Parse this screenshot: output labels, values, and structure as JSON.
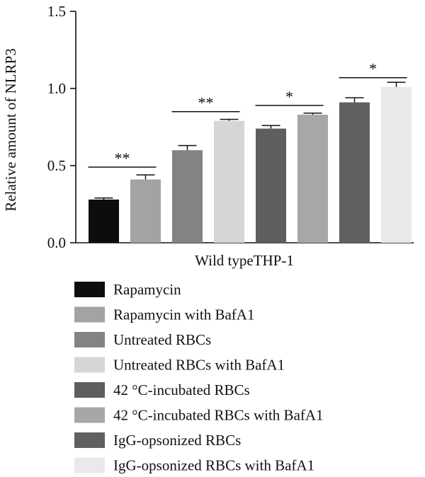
{
  "chart_data": {
    "type": "bar",
    "xlabel": "Wild typeTHP-1",
    "ylabel": "Relative amount of NLRP3",
    "ylim": [
      0,
      1.5
    ],
    "yticks": [
      "0.0",
      "0.5",
      "1.0",
      "1.5"
    ],
    "ytick_values": [
      0,
      0.5,
      1.0,
      1.5
    ],
    "grid": false,
    "legend_position": "bottom",
    "series": [
      {
        "name": "Rapamycin",
        "value": 0.28,
        "error": 0.01,
        "color": "#0d0d0d"
      },
      {
        "name": "Rapamycin with BafA1",
        "value": 0.41,
        "error": 0.03,
        "color": "#a3a3a6"
      },
      {
        "name": "Untreated RBCs",
        "value": 0.6,
        "error": 0.03,
        "color": "#838385"
      },
      {
        "name": "Untreated RBCs with BafA1",
        "value": 0.79,
        "error": 0.01,
        "color": "#d6d6d6"
      },
      {
        "name": "42 °C-incubated RBCs",
        "value": 0.74,
        "error": 0.02,
        "color": "#5e5e60"
      },
      {
        "name": "42 °C-incubated RBCs with BafA1",
        "value": 0.83,
        "error": 0.01,
        "color": "#a7a7aa"
      },
      {
        "name": "IgG-opsonized RBCs",
        "value": 0.91,
        "error": 0.03,
        "color": "#606062"
      },
      {
        "name": "IgG-opsonized RBCs with BafA1",
        "value": 1.01,
        "error": 0.03,
        "color": "#e9e9ea"
      }
    ],
    "significance": [
      {
        "from": 0,
        "to": 1,
        "y": 0.49,
        "label": "**"
      },
      {
        "from": 2,
        "to": 3,
        "y": 0.85,
        "label": "**"
      },
      {
        "from": 4,
        "to": 5,
        "y": 0.89,
        "label": "*"
      },
      {
        "from": 6,
        "to": 7,
        "y": 1.07,
        "label": "*"
      }
    ]
  }
}
